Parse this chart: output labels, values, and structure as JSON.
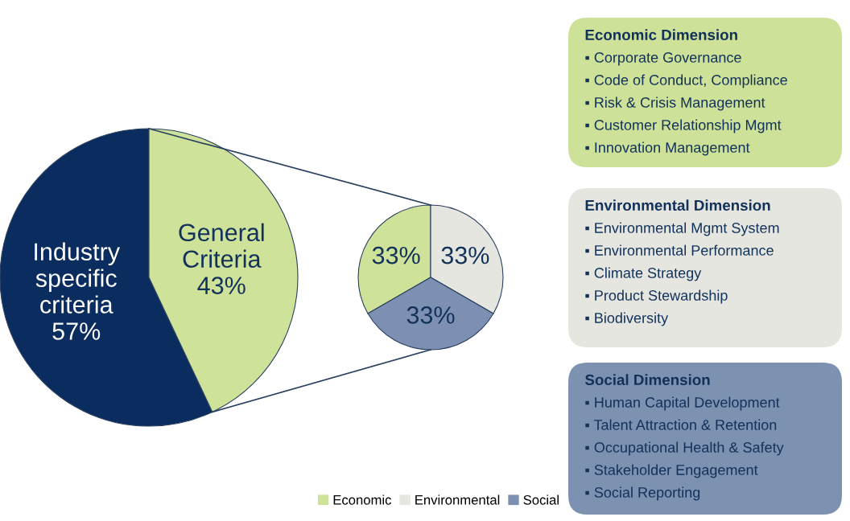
{
  "chart_data": [
    {
      "type": "pie",
      "categories": [
        "Industry\nspecific\ncriteria",
        "General\nCriteria"
      ],
      "values": [
        57,
        43
      ],
      "colors": [
        "#0b2c5e",
        "#cfe29a"
      ],
      "value_labels": [
        "57%",
        "43%"
      ]
    },
    {
      "type": "pie",
      "categories": [
        "Economic",
        "Environmental",
        "Social"
      ],
      "values": [
        33,
        33,
        33
      ],
      "colors": [
        "#cfe29a",
        "#e6e6e0",
        "#7d90b1"
      ],
      "value_labels": [
        "33%",
        "33%",
        "33%"
      ],
      "legend": "bottom"
    },
    {
      "type": "other",
      "title": "Economic Dimension",
      "color": "#cde199",
      "annotations": [
        "▪ Corporate Governance",
        "▪ Code of Conduct, Compliance",
        "▪ Risk & Crisis Management",
        "▪ Customer Relationship Mgmt",
        "▪ Innovation Management"
      ]
    },
    {
      "type": "other",
      "title": "Environmental Dimension",
      "color": "#e6e6e1",
      "annotations": [
        "▪ Environmental Mgmt System",
        "▪ Environmental Performance",
        "▪ Climate Strategy",
        "▪ Product Stewardship",
        "▪ Biodiversity"
      ]
    },
    {
      "type": "other",
      "title": "Social Dimension",
      "color": "#7d91b1",
      "annotations": [
        "▪ Human Capital Development",
        "▪ Talent Attraction & Retention",
        "▪ Occupational Health & Safety",
        "▪ Stakeholder Engagement",
        "▪ Social Reporting"
      ]
    }
  ]
}
